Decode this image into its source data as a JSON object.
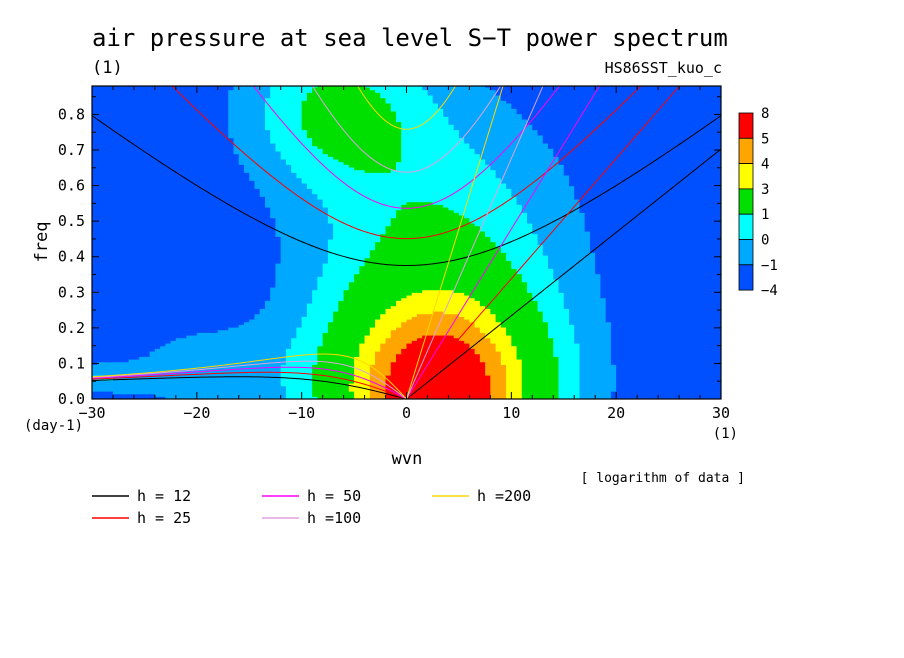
{
  "chart_data": {
    "type": "heatmap",
    "title": "air pressure at sea level S−T power spectrum",
    "subtitle": "(1)",
    "dataset": "HS86SST_kuo_c",
    "xlabel": "wvn",
    "xunit": "(1)",
    "ylabel": "freq",
    "yunit": "(day-1)",
    "xlim": [
      -30,
      30
    ],
    "ylim": [
      0,
      0.88
    ],
    "xticks": [
      -30,
      -20,
      -10,
      0,
      10,
      20,
      30
    ],
    "yticks": [
      0.0,
      0.1,
      0.2,
      0.3,
      0.4,
      0.5,
      0.6,
      0.7,
      0.8
    ],
    "xtick_labels": [
      "−30",
      "−20",
      "−10",
      "0",
      "10",
      "20",
      "30"
    ],
    "ytick_labels": [
      "0.0",
      "0.1",
      "0.2",
      "0.3",
      "0.4",
      "0.5",
      "0.6",
      "0.7",
      "0.8"
    ],
    "note": "[ logarithm of data ]",
    "colorbar": {
      "levels": [
        "8",
        "5",
        "4",
        "3",
        "1",
        "0",
        "−1",
        "−4"
      ],
      "bands": [
        {
          "low": 5,
          "high": 8,
          "color": "#ff0000"
        },
        {
          "low": 4,
          "high": 5,
          "color": "#ffa500"
        },
        {
          "low": 3,
          "high": 4,
          "color": "#ffff00"
        },
        {
          "low": 1,
          "high": 3,
          "color": "#00e000"
        },
        {
          "low": 0,
          "high": 1,
          "color": "#00ffff"
        },
        {
          "low": -1,
          "high": 0,
          "color": "#00a8ff"
        },
        {
          "low": -4,
          "high": -1,
          "color": "#0050ff"
        }
      ]
    },
    "dispersion_curves": [
      {
        "label": "h = 12",
        "h": 12,
        "color": "#000000"
      },
      {
        "label": "h = 25",
        "h": 25,
        "color": "#ff0000"
      },
      {
        "label": "h = 50",
        "h": 50,
        "color": "#ff00ff"
      },
      {
        "label": "h =100",
        "h": 100,
        "color": "#e0a0e0"
      },
      {
        "label": "h =200",
        "h": 200,
        "color": "#ffd700"
      }
    ]
  }
}
